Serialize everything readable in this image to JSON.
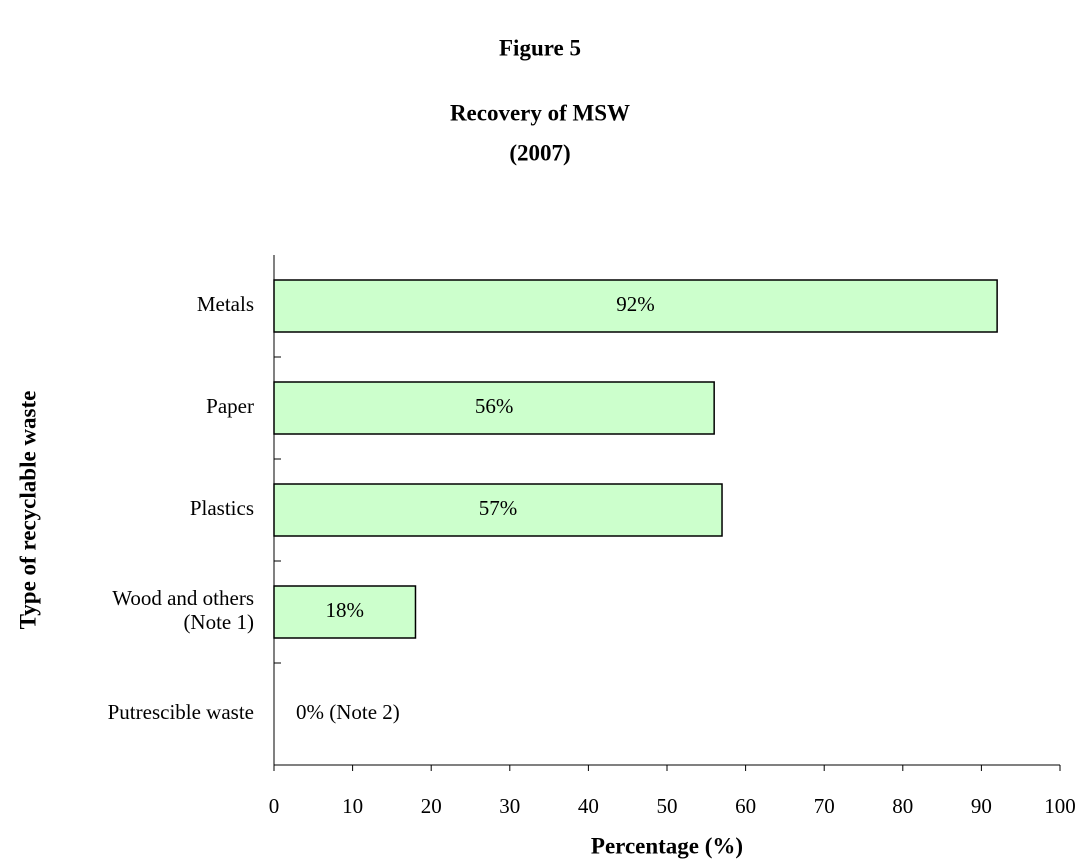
{
  "chart_data": {
    "type": "barh",
    "figure_label": "Figure 5",
    "title": "Recovery of MSW",
    "subtitle": "(2007)",
    "x_label": "Percentage (%)",
    "y_label": "Type of recyclable waste",
    "categories": [
      "Metals",
      "Paper",
      "Plastics",
      "Wood and others\n(Note 1)",
      "Putrescible waste"
    ],
    "values": [
      92,
      56,
      57,
      18,
      0
    ],
    "value_labels": [
      "92%",
      "56%",
      "57%",
      "18%",
      "0% (Note 2)"
    ],
    "color": "#ccffcc",
    "xlim": [
      0,
      100
    ],
    "xticks": [
      0,
      10,
      20,
      30,
      40,
      50,
      60,
      70,
      80,
      90,
      100
    ],
    "grid": false
  }
}
